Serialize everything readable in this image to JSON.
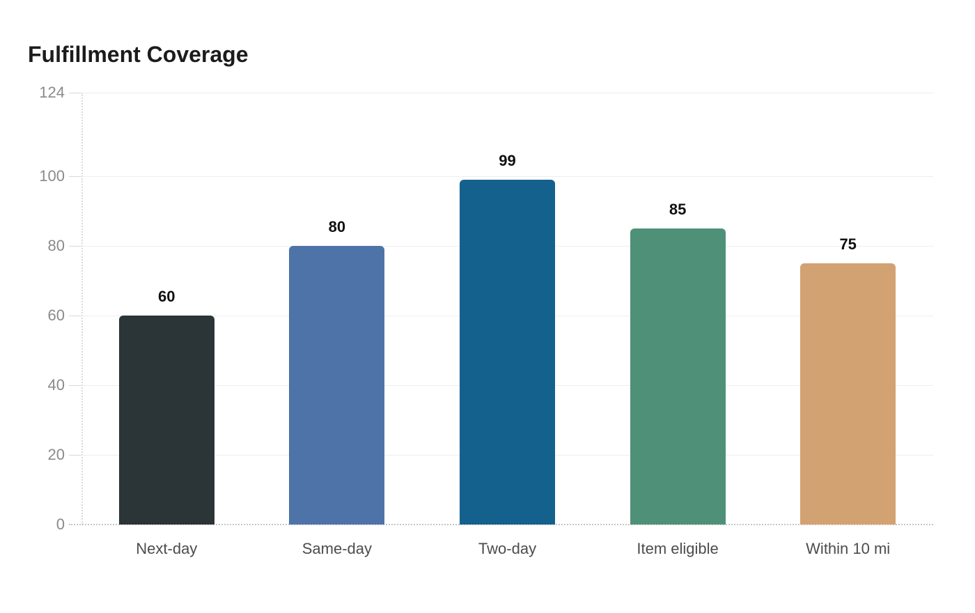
{
  "page": {
    "background": "#ffffff"
  },
  "chart_data": {
    "type": "bar",
    "title": "Fulfillment Coverage",
    "categories": [
      "Next-day",
      "Same-day",
      "Two-day",
      "Item eligible",
      "Within 10 mi"
    ],
    "values": [
      60,
      80,
      99,
      85,
      75
    ],
    "value_labels": [
      "60",
      "80",
      "99",
      "85",
      "75"
    ],
    "bar_colors": [
      "#2b3437",
      "#4d73a9",
      "#15618d",
      "#4f9078",
      "#d2a272"
    ],
    "yticks": [
      0,
      20,
      40,
      60,
      80,
      100,
      124
    ],
    "ylim": [
      0,
      124
    ],
    "xlabel": "",
    "ylabel": "",
    "grid": "horizontal",
    "legend": "none"
  }
}
